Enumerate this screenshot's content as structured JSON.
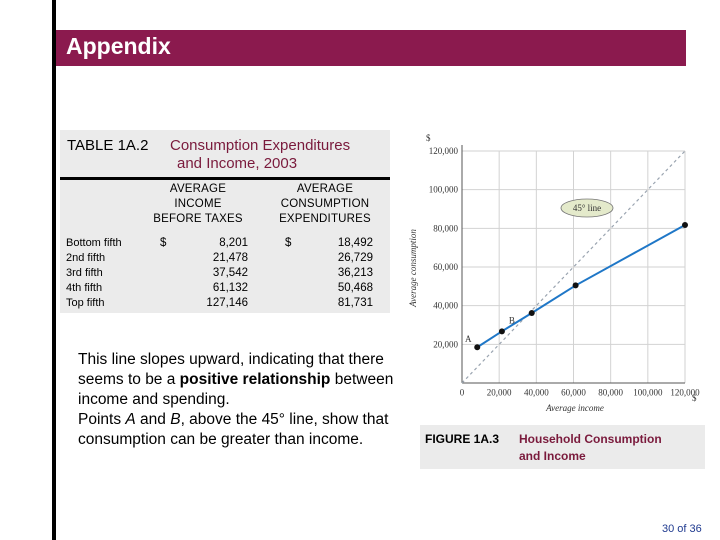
{
  "header": {
    "title": "Appendix"
  },
  "table": {
    "number": "TABLE 1A.2",
    "title_line1": "Consumption Expenditures",
    "title_line2": "and Income, 2003",
    "col1_header": [
      "AVERAGE",
      "INCOME",
      "BEFORE TAXES"
    ],
    "col2_header": [
      "AVERAGE",
      "CONSUMPTION",
      "EXPENDITURES"
    ],
    "rows": [
      "Bottom fifth",
      "2nd fifth",
      "3rd fifth",
      "4th fifth",
      "Top fifth"
    ],
    "col1_values": [
      "8,201",
      "21,478",
      "37,542",
      "61,132",
      "127,146"
    ],
    "col2_values": [
      "18,492",
      "26,729",
      "36,213",
      "50,468",
      "81,731"
    ],
    "currency": "$"
  },
  "body": {
    "p1_pre": "This line slopes upward, indicating that there seems to be a ",
    "p1_bold": "positive relationship",
    "p1_post": " between income and spending.",
    "p2_pre": "Points ",
    "p2_a": "A",
    "p2_mid": " and ",
    "p2_b": "B",
    "p2_post": ", above the 45° line, show that consumption can be greater than income."
  },
  "chart_data": {
    "type": "line",
    "x_unit_label": "$",
    "y_unit_label": "$",
    "xlabel": "Average income",
    "ylabel": "Average consumption",
    "xlim": [
      0,
      120000
    ],
    "ylim": [
      0,
      120000
    ],
    "x_ticks": [
      "0",
      "20,000",
      "40,000",
      "60,000",
      "80,000",
      "100,000",
      "120,000"
    ],
    "y_ticks": [
      "20,000",
      "40,000",
      "60,000",
      "80,000",
      "100,000",
      "120,000"
    ],
    "grid": true,
    "series": [
      {
        "name": "",
        "x": [
          8201,
          21478,
          37542,
          61132,
          127146
        ],
        "y": [
          18492,
          26729,
          36213,
          50468,
          81731
        ],
        "color": "#1f77c7"
      }
    ],
    "reference_line": {
      "label": "45° line",
      "color": "#9aa4b0"
    },
    "point_labels": [
      {
        "text": "A",
        "index": 0
      },
      {
        "text": "B",
        "index": 1
      }
    ]
  },
  "figure": {
    "number": "FIGURE 1A.3",
    "title_line1": "Household Consumption",
    "title_line2": "and Income"
  },
  "page": {
    "label": "30 of 36"
  },
  "colors": {
    "header": "#8b1a4e",
    "panel": "#ebebeb",
    "accent_text": "#7a1a3c",
    "series": "#1f77c7"
  }
}
